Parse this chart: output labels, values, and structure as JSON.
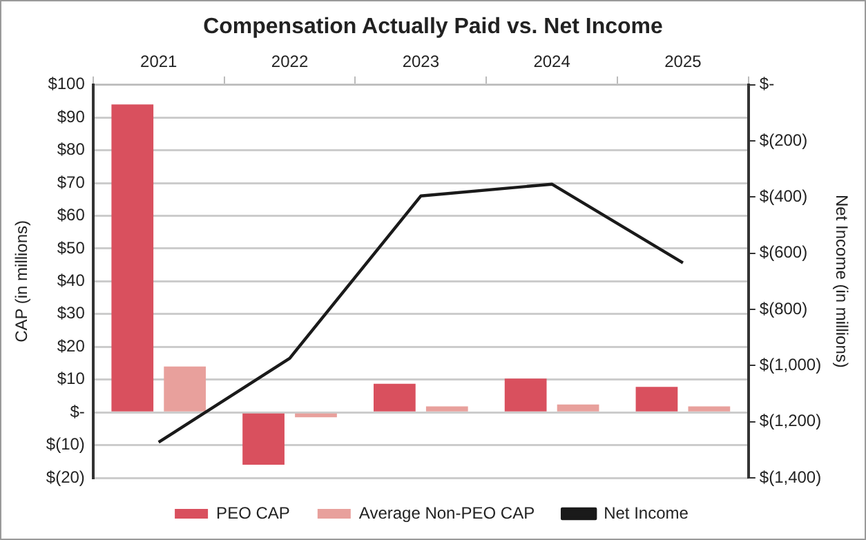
{
  "chart_data": {
    "type": "bar",
    "title": "Compensation Actually Paid vs. Net Income",
    "ylabel": "CAP (in millions)",
    "y2label": "Net Income (in millions)",
    "categories": [
      "2021",
      "2022",
      "2023",
      "2024",
      "2025"
    ],
    "series": [
      {
        "name": "PEO CAP",
        "color": "#d9505e",
        "values": [
          94,
          -16,
          8.7,
          10.3,
          7.8
        ]
      },
      {
        "name": "Average Non-PEO CAP",
        "color": "#e8a09c",
        "values": [
          14,
          -1.5,
          1.8,
          2.4,
          1.8
        ]
      },
      {
        "name": "Net Income",
        "type": "line",
        "axis": "y2",
        "color": "#1a1a1a",
        "values": [
          -1273,
          -974,
          -396,
          -354,
          -634
        ]
      }
    ],
    "ylim": [
      -20,
      100
    ],
    "yticks": [
      {
        "value": -20,
        "label": "$(20)"
      },
      {
        "value": -10,
        "label": "$(10)"
      },
      {
        "value": 0,
        "label": "$-"
      },
      {
        "value": 10,
        "label": "$10"
      },
      {
        "value": 20,
        "label": "$20"
      },
      {
        "value": 30,
        "label": "$30"
      },
      {
        "value": 40,
        "label": "$40"
      },
      {
        "value": 50,
        "label": "$50"
      },
      {
        "value": 60,
        "label": "$60"
      },
      {
        "value": 70,
        "label": "$70"
      },
      {
        "value": 80,
        "label": "$80"
      },
      {
        "value": 90,
        "label": "$90"
      },
      {
        "value": 100,
        "label": "$100"
      }
    ],
    "y2lim": [
      -1400,
      0
    ],
    "y2ticks": [
      {
        "value": -1400,
        "label": "$(1,400)"
      },
      {
        "value": -1200,
        "label": "$(1,200)"
      },
      {
        "value": -1000,
        "label": "$(1,000)"
      },
      {
        "value": -800,
        "label": "$(800)"
      },
      {
        "value": -600,
        "label": "$(600)"
      },
      {
        "value": -400,
        "label": "$(400)"
      },
      {
        "value": -200,
        "label": "$(200)"
      },
      {
        "value": 0,
        "label": "$-"
      }
    ],
    "grid": "y",
    "legend": "bottom",
    "marker": "none",
    "line_style": "solid"
  }
}
